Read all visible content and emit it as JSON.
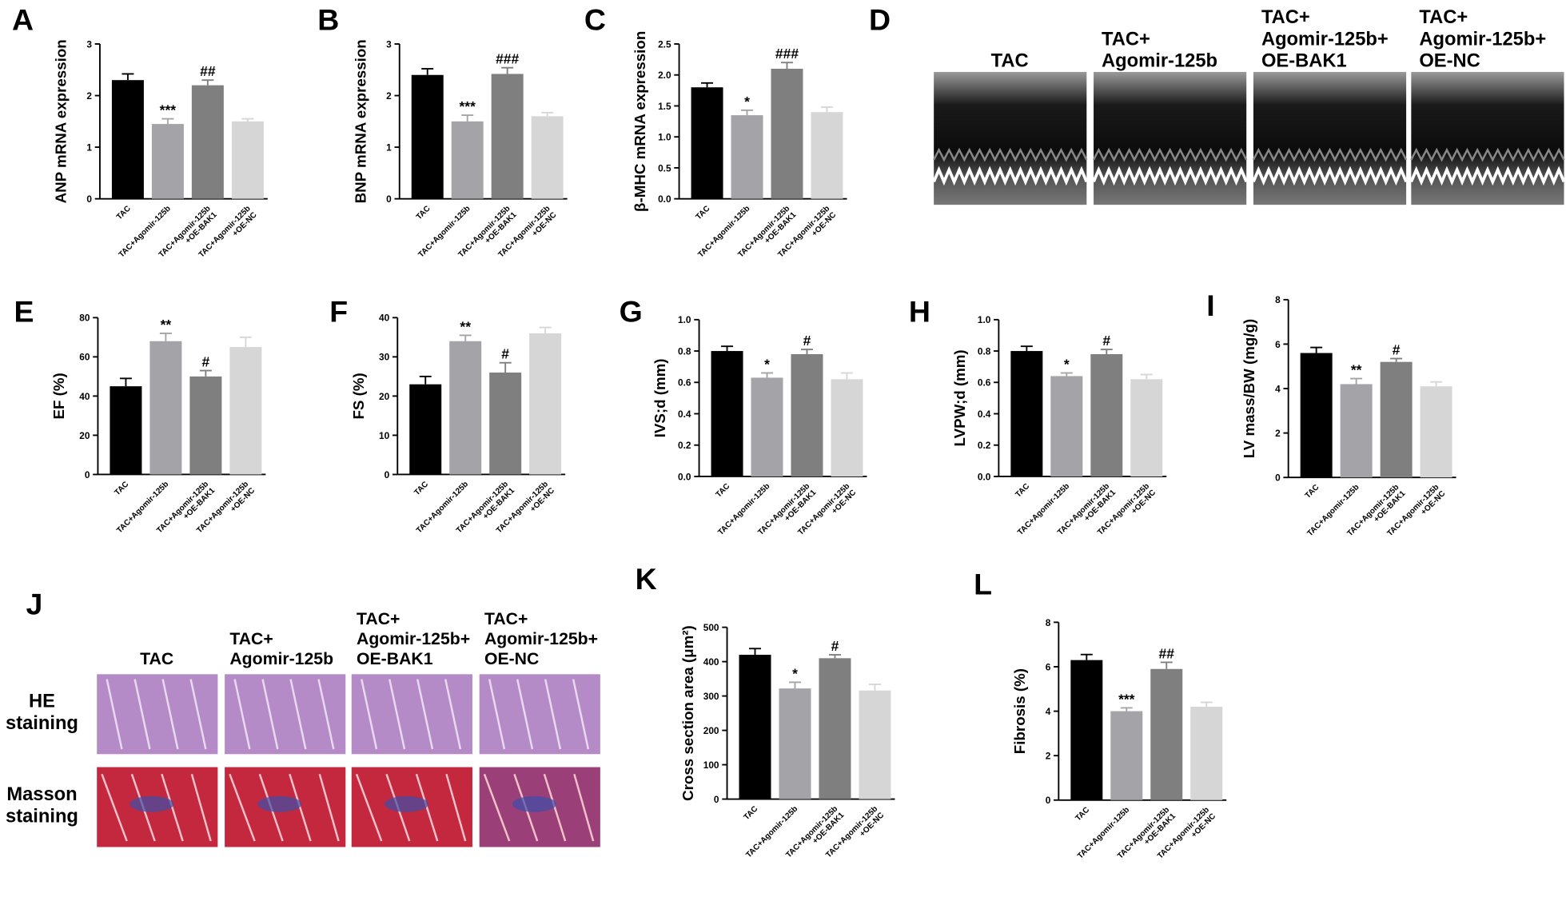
{
  "chart_data": [
    {
      "panel": "A",
      "type": "bar",
      "ylabel": "ANP mRNA expression",
      "categories": [
        "TAC",
        "TAC+Agomir-125b",
        "TAC+Agomir-125b\n+OE-BAK1",
        "TAC+Agomir-125b\n+OE-NC"
      ],
      "values": [
        2.3,
        1.45,
        2.2,
        1.5
      ],
      "errors": [
        0.12,
        0.1,
        0.1,
        0.05
      ],
      "annotations": [
        null,
        "***",
        "##",
        null
      ],
      "colors": [
        "#000000",
        "#a4a4a8",
        "#7f7f7f",
        "#d6d6d6"
      ],
      "ylim": [
        0,
        3
      ],
      "yticks": [
        0,
        1,
        2,
        3
      ]
    },
    {
      "panel": "B",
      "type": "bar",
      "ylabel": "BNP mRNA expression",
      "categories": [
        "TAC",
        "TAC+Agomir-125b",
        "TAC+Agomir-125b\n+OE-BAK1",
        "TAC+Agomir-125b\n+OE-NC"
      ],
      "values": [
        2.4,
        1.5,
        2.42,
        1.6
      ],
      "errors": [
        0.12,
        0.12,
        0.12,
        0.07
      ],
      "annotations": [
        null,
        "***",
        "###",
        null
      ],
      "colors": [
        "#000000",
        "#a4a4a8",
        "#7f7f7f",
        "#d6d6d6"
      ],
      "ylim": [
        0,
        3
      ],
      "yticks": [
        0,
        1,
        2,
        3
      ]
    },
    {
      "panel": "C",
      "type": "bar",
      "ylabel": "β-MHC mRNA expression",
      "categories": [
        "TAC",
        "TAC+Agomir-125b",
        "TAC+Agomir-125b\n+OE-BAK1",
        "TAC+Agomir-125b\n+OE-NC"
      ],
      "values": [
        1.8,
        1.35,
        2.1,
        1.4
      ],
      "errors": [
        0.07,
        0.08,
        0.1,
        0.08
      ],
      "annotations": [
        null,
        "*",
        "###",
        null
      ],
      "colors": [
        "#000000",
        "#a4a4a8",
        "#7f7f7f",
        "#d6d6d6"
      ],
      "ylim": [
        0,
        2.5
      ],
      "yticks": [
        {
          "value": 0,
          "label": "0.0"
        },
        0.5,
        {
          "value": 1,
          "label": "1.0"
        },
        1.5,
        {
          "value": 2,
          "label": "2.0"
        },
        2.5
      ]
    },
    {
      "panel": "E",
      "type": "bar",
      "ylabel": "EF (%)",
      "categories": [
        "TAC",
        "TAC+Agomir-125b",
        "TAC+Agomir-125b\n+OE-BAK1",
        "TAC+Agomir-125b\n+OE-NC"
      ],
      "values": [
        45,
        68,
        50,
        65
      ],
      "errors": [
        4,
        4,
        3,
        5
      ],
      "annotations": [
        null,
        "**",
        "#",
        null
      ],
      "colors": [
        "#000000",
        "#a4a4a8",
        "#7f7f7f",
        "#d6d6d6"
      ],
      "ylim": [
        0,
        80
      ],
      "yticks": [
        0,
        20,
        40,
        60,
        80
      ]
    },
    {
      "panel": "F",
      "type": "bar",
      "ylabel": "FS (%)",
      "categories": [
        "TAC",
        "TAC+Agomir-125b",
        "TAC+Agomir-125b\n+OE-BAK1",
        "TAC+Agomir-125b\n+OE-NC"
      ],
      "values": [
        23,
        34,
        26,
        36
      ],
      "errors": [
        2,
        1.5,
        2.5,
        1.5
      ],
      "annotations": [
        null,
        "**",
        "#",
        null
      ],
      "colors": [
        "#000000",
        "#a4a4a8",
        "#7f7f7f",
        "#d6d6d6"
      ],
      "ylim": [
        0,
        40
      ],
      "yticks": [
        0,
        10,
        20,
        30,
        40
      ]
    },
    {
      "panel": "G",
      "type": "bar",
      "ylabel": "IVS;d (mm)",
      "categories": [
        "TAC",
        "TAC+Agomir-125b",
        "TAC+Agomir-125b\n+OE-BAK1",
        "TAC+Agomir-125b\n+OE-NC"
      ],
      "values": [
        0.8,
        0.63,
        0.78,
        0.62
      ],
      "errors": [
        0.03,
        0.03,
        0.03,
        0.04
      ],
      "annotations": [
        null,
        "*",
        "#",
        null
      ],
      "colors": [
        "#000000",
        "#a4a4a8",
        "#7f7f7f",
        "#d6d6d6"
      ],
      "ylim": [
        0,
        1
      ],
      "yticks": [
        {
          "value": 0,
          "label": "0.0"
        },
        0.2,
        0.4,
        0.6,
        0.8,
        {
          "value": 1,
          "label": "1.0"
        }
      ]
    },
    {
      "panel": "H",
      "type": "bar",
      "ylabel": "LVPW;d (mm)",
      "categories": [
        "TAC",
        "TAC+Agomir-125b",
        "TAC+Agomir-125b\n+OE-BAK1",
        "TAC+Agomir-125b\n+OE-NC"
      ],
      "values": [
        0.8,
        0.64,
        0.78,
        0.62
      ],
      "errors": [
        0.03,
        0.02,
        0.03,
        0.03
      ],
      "annotations": [
        null,
        "*",
        "#",
        null
      ],
      "colors": [
        "#000000",
        "#a4a4a8",
        "#7f7f7f",
        "#d6d6d6"
      ],
      "ylim": [
        0,
        1
      ],
      "yticks": [
        {
          "value": 0,
          "label": "0.0"
        },
        0.2,
        0.4,
        0.6,
        0.8,
        {
          "value": 1,
          "label": "1.0"
        }
      ]
    },
    {
      "panel": "I",
      "type": "bar",
      "ylabel": "LV mass/BW (mg/g)",
      "categories": [
        "TAC",
        "TAC+Agomir-125b",
        "TAC+Agomir-125b\n+OE-BAK1",
        "TAC+Agomir-125b\n+OE-NC"
      ],
      "values": [
        5.6,
        4.2,
        5.2,
        4.1
      ],
      "errors": [
        0.25,
        0.25,
        0.15,
        0.2
      ],
      "annotations": [
        null,
        "**",
        "#",
        null
      ],
      "colors": [
        "#000000",
        "#a4a4a8",
        "#7f7f7f",
        "#d6d6d6"
      ],
      "ylim": [
        0,
        8
      ],
      "yticks": [
        0,
        2,
        4,
        6,
        8
      ]
    },
    {
      "panel": "K",
      "type": "bar",
      "ylabel": "Cross section area (μm²)",
      "categories": [
        "TAC",
        "TAC+Agomir-125b",
        "TAC+Agomir-125b\n+OE-BAK1",
        "TAC+Agomir-125b\n+OE-NC"
      ],
      "values": [
        420,
        322,
        410,
        316
      ],
      "errors": [
        18,
        18,
        10,
        18
      ],
      "annotations": [
        null,
        "*",
        "#",
        null
      ],
      "colors": [
        "#000000",
        "#a4a4a8",
        "#7f7f7f",
        "#d6d6d6"
      ],
      "ylim": [
        0,
        500
      ],
      "yticks": [
        0,
        100,
        200,
        300,
        400,
        500
      ]
    },
    {
      "panel": "L",
      "type": "bar",
      "ylabel": "Fibrosis (%)",
      "categories": [
        "TAC",
        "TAC+Agomir-125b",
        "TAC+Agomir-125b\n+OE-BAK1",
        "TAC+Agomir-125b\n+OE-NC"
      ],
      "values": [
        6.3,
        4.0,
        5.9,
        4.2
      ],
      "errors": [
        0.25,
        0.15,
        0.3,
        0.2
      ],
      "annotations": [
        null,
        "***",
        "##",
        null
      ],
      "colors": [
        "#000000",
        "#a4a4a8",
        "#7f7f7f",
        "#d6d6d6"
      ],
      "ylim": [
        0,
        8
      ],
      "yticks": [
        0,
        2,
        4,
        6,
        8
      ]
    }
  ],
  "image_panels": [
    {
      "panel": "D",
      "columns": [
        "TAC",
        "TAC+\nAgomir-125b",
        "TAC+\nAgomir-125b+\nOE-BAK1",
        "TAC+\nAgomir-125b+\nOE-NC"
      ]
    },
    {
      "panel": "J",
      "columns": [
        "TAC",
        "TAC+\nAgomir-125b",
        "TAC+\nAgomir-125b+\nOE-BAK1",
        "TAC+\nAgomir-125b+\nOE-NC"
      ],
      "rows": [
        "HE\nstaining",
        "Masson\nstaining"
      ]
    }
  ]
}
